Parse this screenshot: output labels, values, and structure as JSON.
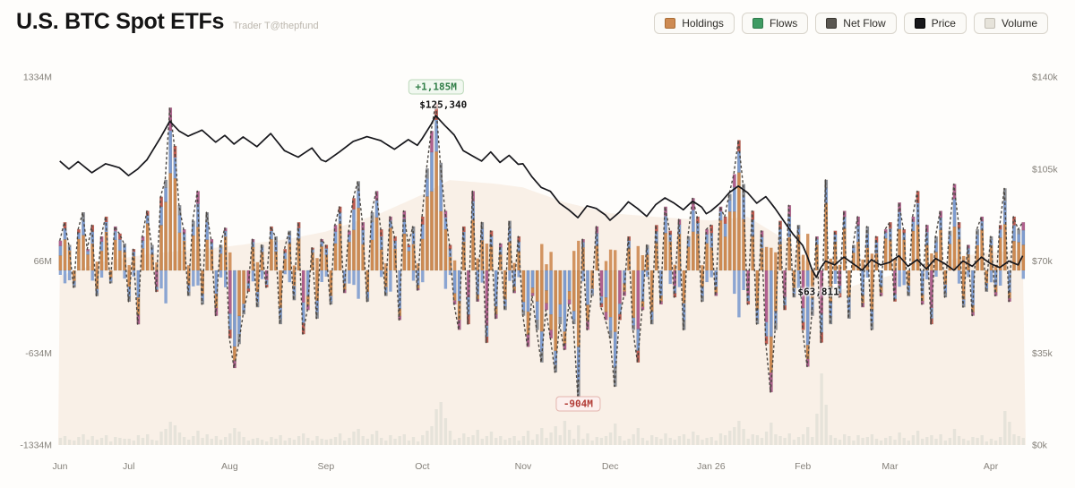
{
  "header": {
    "title": "U.S. BTC Spot ETFs",
    "subtitle": "Trader T@thepfund"
  },
  "legend": [
    {
      "label": "Holdings",
      "color": "#cd8a52",
      "border": "#a96c35"
    },
    {
      "label": "Flows",
      "color": "#3f9b63",
      "border": "#2e7a4a"
    },
    {
      "label": "Net Flow",
      "color": "#5a5751",
      "border": "#3a3731"
    },
    {
      "label": "Price",
      "color": "#17171a",
      "border": "#000000"
    },
    {
      "label": "Volume",
      "color": "#e6e3da",
      "border": "#c2beb4"
    }
  ],
  "chart_data": {
    "type": "combo: stacked daily net-flow bars + net-flow dashed line + price line + holdings area + volume bars",
    "x_ticks": [
      {
        "label": "Jun",
        "day": 0
      },
      {
        "label": "Jul",
        "day": 15
      },
      {
        "label": "Aug",
        "day": 37
      },
      {
        "label": "Sep",
        "day": 58
      },
      {
        "label": "Oct",
        "day": 79
      },
      {
        "label": "Nov",
        "day": 101
      },
      {
        "label": "Dec",
        "day": 120
      },
      {
        "label": "Jan 26",
        "day": 142
      },
      {
        "label": "Feb",
        "day": 162
      },
      {
        "label": "Mar",
        "day": 181
      },
      {
        "label": "Apr",
        "day": 203
      }
    ],
    "left_axis": {
      "unit": "net flow, $M",
      "ticks": [
        {
          "label": "1334M",
          "value": 1334,
          "align_price_k": 140
        },
        {
          "label": "66M",
          "value": 66,
          "align_price_k": 70
        },
        {
          "label": "-634M",
          "value": -634,
          "align_price_k": 35
        },
        {
          "label": "-1334M",
          "value": -1334,
          "align_price_k": 0
        }
      ]
    },
    "right_axis": {
      "unit": "BTC price, $k",
      "ticks": [
        {
          "label": "$140k",
          "value_k": 140
        },
        {
          "label": "$105k",
          "value_k": 105
        },
        {
          "label": "$70k",
          "value_k": 70
        },
        {
          "label": "$35k",
          "value_k": 35
        },
        {
          "label": "$0k",
          "value_k": 0
        }
      ]
    },
    "net_flow_m": [
      210,
      340,
      180,
      -120,
      290,
      410,
      150,
      320,
      -180,
      240,
      380,
      -90,
      310,
      260,
      190,
      -220,
      150,
      -380,
      240,
      420,
      180,
      -150,
      520,
      640,
      1150,
      880,
      460,
      290,
      -180,
      350,
      560,
      -240,
      410,
      220,
      -320,
      180,
      300,
      -480,
      -690,
      -520,
      -310,
      -150,
      220,
      -260,
      180,
      -120,
      310,
      240,
      -380,
      150,
      280,
      -210,
      340,
      -450,
      -280,
      160,
      -340,
      220,
      180,
      -240,
      320,
      450,
      -160,
      280,
      510,
      630,
      340,
      -220,
      410,
      560,
      290,
      -180,
      380,
      240,
      -350,
      420,
      180,
      310,
      -140,
      380,
      720,
      985,
      1185,
      760,
      420,
      180,
      -240,
      -420,
      310,
      -380,
      560,
      -220,
      340,
      -510,
      280,
      -340,
      190,
      -280,
      350,
      -160,
      240,
      -320,
      -540,
      -180,
      -420,
      -650,
      -280,
      -480,
      -720,
      -380,
      -560,
      -240,
      -380,
      -904,
      220,
      -420,
      -180,
      310,
      -260,
      -350,
      -480,
      -820,
      -350,
      -180,
      240,
      -420,
      -650,
      -280,
      180,
      -380,
      320,
      -240,
      450,
      280,
      -190,
      360,
      -420,
      240,
      510,
      380,
      -220,
      290,
      320,
      -180,
      450,
      380,
      540,
      680,
      920,
      610,
      -240,
      420,
      -380,
      280,
      -520,
      -860,
      -420,
      350,
      -280,
      460,
      -190,
      320,
      -420,
      -680,
      -320,
      240,
      -510,
      640,
      -380,
      280,
      -190,
      420,
      -340,
      180,
      380,
      -260,
      310,
      -420,
      240,
      -180,
      290,
      340,
      -220,
      480,
      290,
      -180,
      380,
      560,
      -240,
      320,
      -380,
      240,
      420,
      -190,
      280,
      610,
      340,
      -260,
      180,
      -320,
      290,
      380,
      -150,
      240,
      -180,
      320,
      580,
      -220,
      380,
      290,
      340
    ],
    "volume_rel": [
      8,
      10,
      6,
      5,
      9,
      12,
      6,
      10,
      6,
      8,
      11,
      4,
      9,
      8,
      7,
      7,
      5,
      11,
      8,
      12,
      6,
      5,
      15,
      18,
      26,
      22,
      14,
      9,
      6,
      10,
      16,
      8,
      12,
      7,
      10,
      6,
      9,
      13,
      19,
      15,
      9,
      5,
      7,
      8,
      6,
      4,
      9,
      7,
      11,
      5,
      8,
      6,
      10,
      13,
      8,
      5,
      10,
      7,
      6,
      7,
      9,
      13,
      5,
      8,
      15,
      18,
      10,
      7,
      12,
      16,
      8,
      5,
      11,
      7,
      10,
      12,
      5,
      9,
      4,
      11,
      16,
      21,
      40,
      48,
      30,
      16,
      6,
      8,
      13,
      9,
      11,
      17,
      7,
      10,
      15,
      8,
      10,
      6,
      8,
      10,
      5,
      10,
      16,
      6,
      12,
      19,
      8,
      14,
      21,
      11,
      27,
      17,
      7,
      22,
      7,
      13,
      5,
      9,
      8,
      10,
      14,
      24,
      10,
      5,
      7,
      12,
      19,
      8,
      5,
      11,
      9,
      7,
      13,
      8,
      6,
      10,
      12,
      7,
      15,
      11,
      6,
      8,
      9,
      5,
      13,
      11,
      16,
      20,
      27,
      18,
      7,
      12,
      11,
      8,
      15,
      25,
      12,
      10,
      8,
      13,
      6,
      9,
      12,
      20,
      9,
      35,
      80,
      45,
      11,
      8,
      6,
      12,
      10,
      5,
      11,
      8,
      9,
      12,
      7,
      5,
      8,
      10,
      6,
      14,
      8,
      5,
      11,
      16,
      7,
      9,
      11,
      7,
      12,
      5,
      8,
      18,
      10,
      7,
      5,
      9,
      8,
      11,
      4,
      7,
      5,
      9,
      38,
      26,
      12,
      10,
      8
    ],
    "price_anchors_k": [
      [
        0,
        108
      ],
      [
        2,
        105
      ],
      [
        4,
        107.8
      ],
      [
        7,
        103.6
      ],
      [
        10,
        107
      ],
      [
        13,
        105.5
      ],
      [
        15,
        102.5
      ],
      [
        17,
        105
      ],
      [
        19,
        108.5
      ],
      [
        22,
        117
      ],
      [
        24,
        123.2
      ],
      [
        26,
        119.5
      ],
      [
        28,
        117.5
      ],
      [
        31,
        119.8
      ],
      [
        34,
        115.2
      ],
      [
        36,
        117.8
      ],
      [
        38,
        114.5
      ],
      [
        40,
        117.2
      ],
      [
        43,
        113.5
      ],
      [
        46,
        118.5
      ],
      [
        49,
        112
      ],
      [
        52,
        109.5
      ],
      [
        55,
        113
      ],
      [
        57,
        108.5
      ],
      [
        58,
        107.8
      ],
      [
        61,
        111.5
      ],
      [
        64,
        115.5
      ],
      [
        67,
        117.3
      ],
      [
        70,
        115.8
      ],
      [
        73,
        112.5
      ],
      [
        76,
        116.2
      ],
      [
        78,
        114
      ],
      [
        79,
        116.5
      ],
      [
        81,
        122
      ],
      [
        82,
        125.34
      ],
      [
        84,
        121.5
      ],
      [
        86,
        118
      ],
      [
        88,
        112
      ],
      [
        90,
        110
      ],
      [
        92,
        108
      ],
      [
        94,
        111.5
      ],
      [
        96,
        107.5
      ],
      [
        98,
        110.2
      ],
      [
        100,
        106.8
      ],
      [
        101,
        107
      ],
      [
        103,
        102
      ],
      [
        105,
        98
      ],
      [
        107,
        96.5
      ],
      [
        109,
        92
      ],
      [
        111,
        89.5
      ],
      [
        113,
        86.5
      ],
      [
        115,
        91
      ],
      [
        117,
        90
      ],
      [
        119,
        87.5
      ],
      [
        120,
        85.5
      ],
      [
        122,
        88.5
      ],
      [
        124,
        92.5
      ],
      [
        126,
        90
      ],
      [
        128,
        87
      ],
      [
        130,
        91.5
      ],
      [
        132,
        94
      ],
      [
        134,
        92
      ],
      [
        136,
        89.5
      ],
      [
        138,
        92.8
      ],
      [
        140,
        90.5
      ],
      [
        141,
        88
      ],
      [
        142,
        89
      ],
      [
        144,
        92
      ],
      [
        146,
        96
      ],
      [
        148,
        98.5
      ],
      [
        150,
        96
      ],
      [
        152,
        92
      ],
      [
        154,
        94.5
      ],
      [
        156,
        90
      ],
      [
        158,
        85
      ],
      [
        160,
        80
      ],
      [
        162,
        76
      ],
      [
        163,
        72
      ],
      [
        164,
        67
      ],
      [
        165,
        63.8
      ],
      [
        166,
        67.5
      ],
      [
        167,
        70
      ],
      [
        169,
        68.5
      ],
      [
        171,
        71.5
      ],
      [
        173,
        69
      ],
      [
        175,
        66.5
      ],
      [
        177,
        70.5
      ],
      [
        179,
        68.5
      ],
      [
        181,
        69.5
      ],
      [
        183,
        72
      ],
      [
        185,
        68
      ],
      [
        187,
        70.5
      ],
      [
        189,
        67
      ],
      [
        191,
        71
      ],
      [
        193,
        69
      ],
      [
        195,
        66.5
      ],
      [
        197,
        70
      ],
      [
        199,
        68
      ],
      [
        201,
        71.5
      ],
      [
        203,
        69
      ],
      [
        205,
        67.5
      ],
      [
        207,
        70
      ],
      [
        209,
        68.5
      ],
      [
        210,
        72
      ]
    ],
    "holdings_area_anchors_rel": [
      [
        0,
        0.46
      ],
      [
        10,
        0.5
      ],
      [
        20,
        0.52
      ],
      [
        37,
        0.54
      ],
      [
        50,
        0.56
      ],
      [
        58,
        0.58
      ],
      [
        70,
        0.63
      ],
      [
        79,
        0.68
      ],
      [
        85,
        0.72
      ],
      [
        95,
        0.71
      ],
      [
        101,
        0.7
      ],
      [
        110,
        0.66
      ],
      [
        120,
        0.63
      ],
      [
        130,
        0.62
      ],
      [
        142,
        0.61
      ],
      [
        150,
        0.62
      ],
      [
        158,
        0.56
      ],
      [
        165,
        0.47
      ],
      [
        170,
        0.42
      ],
      [
        175,
        0.44
      ],
      [
        181,
        0.46
      ],
      [
        190,
        0.49
      ],
      [
        200,
        0.52
      ],
      [
        210,
        0.53
      ]
    ],
    "annotations": {
      "max_flow": {
        "text": "+1,185M",
        "day": 82,
        "value": 1185
      },
      "price_high": {
        "text": "$125,340",
        "day": 82,
        "value_k": 125.34
      },
      "min_flow": {
        "text": "-904M",
        "day": 113,
        "value": -904
      },
      "price_low": {
        "text": "$63,811",
        "day": 165,
        "value_k": 63.811
      }
    },
    "bar_palette": {
      "orange": "#cd8a52",
      "blue": "#7e9ccf",
      "purple": "#b0608f",
      "crimson": "#bf5a50",
      "slate": "#8a8f98"
    },
    "style_colors": {
      "price_line": "#17171c",
      "net_flow_line": "#4b4742",
      "volume_bar": "#e6e3da",
      "holdings_area": "#f4e6d7",
      "axis_text": "#85817a",
      "annotation_green": "#2f7d46",
      "annotation_red": "#b23c36"
    }
  }
}
